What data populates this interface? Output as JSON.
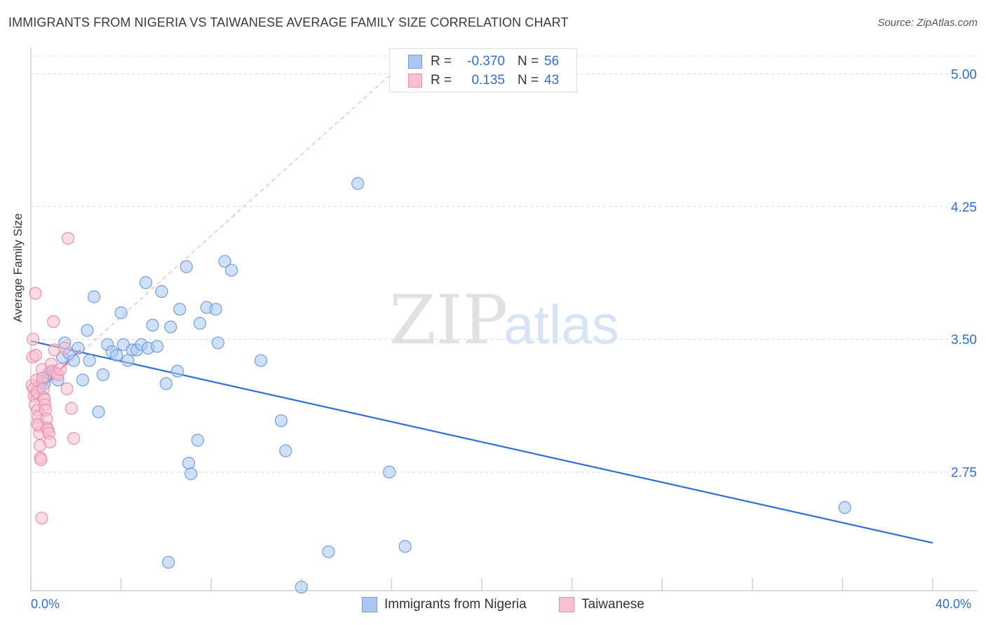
{
  "title": "IMMIGRANTS FROM NIGERIA VS TAIWANESE AVERAGE FAMILY SIZE CORRELATION CHART",
  "source": "Source: ZipAtlas.com",
  "legend_top": {
    "rows": [
      {
        "r_label": "R =",
        "r_value": "-0.370",
        "n_label": "N =",
        "n_value": "56",
        "fill": "#aac8f0",
        "stroke": "#6f9fe0"
      },
      {
        "r_label": "R =",
        "r_value": "0.135",
        "n_label": "N =",
        "n_value": "43",
        "fill": "#f8c0d0",
        "stroke": "#ec8fab"
      }
    ]
  },
  "legend_bottom": [
    {
      "label": "Immigrants from Nigeria",
      "fill": "#aac8f0",
      "stroke": "#6f9fe0"
    },
    {
      "label": "Taiwanese",
      "fill": "#f8c0d0",
      "stroke": "#ec8fab"
    }
  ],
  "x_tick_labels": {
    "left": "0.0%",
    "right": "40.0%"
  },
  "watermark": {
    "zip": "ZIP",
    "atlas": "atlas"
  },
  "chart_data": {
    "type": "scatter",
    "title": "IMMIGRANTS FROM NIGERIA VS TAIWANESE AVERAGE FAMILY SIZE CORRELATION CHART",
    "xlabel": "",
    "ylabel": "Average Family Size",
    "xlim": [
      0,
      40
    ],
    "ylim": [
      2.08,
      5.1
    ],
    "y_ticks": [
      2.75,
      3.5,
      4.25,
      5.0
    ],
    "y_tick_labels": [
      "2.75",
      "3.50",
      "4.25",
      "5.00"
    ],
    "grid": "horizontal dashed",
    "legend_position": "top-center",
    "series": [
      {
        "name": "Immigrants from Nigeria",
        "color": "#6f9fe0",
        "fill": "#aac8f0",
        "r": -0.37,
        "n": 56,
        "trend": {
          "x": [
            0,
            40
          ],
          "y": [
            3.49,
            2.35
          ]
        },
        "points": [
          [
            0.5,
            3.26
          ],
          [
            0.6,
            3.25
          ],
          [
            0.7,
            3.29
          ],
          [
            0.8,
            3.31
          ],
          [
            1.0,
            3.32
          ],
          [
            1.2,
            3.27
          ],
          [
            1.4,
            3.4
          ],
          [
            1.5,
            3.48
          ],
          [
            1.7,
            3.42
          ],
          [
            1.9,
            3.38
          ],
          [
            2.1,
            3.45
          ],
          [
            2.3,
            3.27
          ],
          [
            2.5,
            3.55
          ],
          [
            2.6,
            3.38
          ],
          [
            2.8,
            3.74
          ],
          [
            3.0,
            3.09
          ],
          [
            3.2,
            3.3
          ],
          [
            3.4,
            3.47
          ],
          [
            3.6,
            3.43
          ],
          [
            3.8,
            3.41
          ],
          [
            4.0,
            3.65
          ],
          [
            4.1,
            3.47
          ],
          [
            4.3,
            3.38
          ],
          [
            4.5,
            3.44
          ],
          [
            4.7,
            3.44
          ],
          [
            4.9,
            3.47
          ],
          [
            5.1,
            3.82
          ],
          [
            5.2,
            3.45
          ],
          [
            5.4,
            3.58
          ],
          [
            5.6,
            3.46
          ],
          [
            5.8,
            3.77
          ],
          [
            6.0,
            3.25
          ],
          [
            6.2,
            3.57
          ],
          [
            6.5,
            3.32
          ],
          [
            6.6,
            3.67
          ],
          [
            6.9,
            3.91
          ],
          [
            7.0,
            2.8
          ],
          [
            7.1,
            2.74
          ],
          [
            7.4,
            2.93
          ],
          [
            7.5,
            3.59
          ],
          [
            7.8,
            3.68
          ],
          [
            8.2,
            3.67
          ],
          [
            8.3,
            3.48
          ],
          [
            8.6,
            3.94
          ],
          [
            8.9,
            3.89
          ],
          [
            10.2,
            3.38
          ],
          [
            11.1,
            3.04
          ],
          [
            11.3,
            2.87
          ],
          [
            12.0,
            2.1
          ],
          [
            13.2,
            2.3
          ],
          [
            14.5,
            4.38
          ],
          [
            15.9,
            2.75
          ],
          [
            16.6,
            2.33
          ],
          [
            6.1,
            2.24
          ],
          [
            36.1,
            2.55
          ],
          [
            0.4,
            3.23
          ]
        ]
      },
      {
        "name": "Taiwanese",
        "color": "#ec8fab",
        "fill": "#f8c0d0",
        "r": 0.135,
        "n": 43,
        "trend": {
          "x": [
            0,
            2.2
          ],
          "y": [
            3.17,
            3.44
          ]
        },
        "trend_extended": {
          "x": [
            0,
            16
          ],
          "y": [
            3.17,
            5.0
          ]
        },
        "points": [
          [
            0.05,
            3.24
          ],
          [
            0.08,
            3.4
          ],
          [
            0.1,
            3.5
          ],
          [
            0.12,
            3.22
          ],
          [
            0.15,
            3.18
          ],
          [
            0.18,
            3.13
          ],
          [
            0.2,
            3.76
          ],
          [
            0.22,
            3.41
          ],
          [
            0.25,
            3.27
          ],
          [
            0.28,
            3.2
          ],
          [
            0.3,
            3.1
          ],
          [
            0.32,
            3.06
          ],
          [
            0.35,
            3.01
          ],
          [
            0.38,
            2.97
          ],
          [
            0.4,
            2.9
          ],
          [
            0.42,
            2.83
          ],
          [
            0.45,
            2.82
          ],
          [
            0.48,
            2.49
          ],
          [
            0.5,
            3.33
          ],
          [
            0.52,
            3.28
          ],
          [
            0.55,
            3.22
          ],
          [
            0.58,
            3.17
          ],
          [
            0.6,
            3.16
          ],
          [
            0.62,
            3.13
          ],
          [
            0.65,
            3.1
          ],
          [
            0.7,
            3.05
          ],
          [
            0.72,
            3.0
          ],
          [
            0.75,
            2.99
          ],
          [
            0.8,
            2.97
          ],
          [
            0.85,
            2.92
          ],
          [
            0.9,
            3.36
          ],
          [
            0.95,
            3.32
          ],
          [
            1.0,
            3.6
          ],
          [
            1.05,
            3.44
          ],
          [
            1.1,
            3.31
          ],
          [
            1.2,
            3.3
          ],
          [
            1.3,
            3.33
          ],
          [
            1.5,
            3.45
          ],
          [
            1.6,
            3.22
          ],
          [
            1.8,
            3.11
          ],
          [
            1.9,
            2.94
          ],
          [
            0.3,
            3.02
          ],
          [
            1.65,
            4.07
          ]
        ]
      }
    ]
  }
}
